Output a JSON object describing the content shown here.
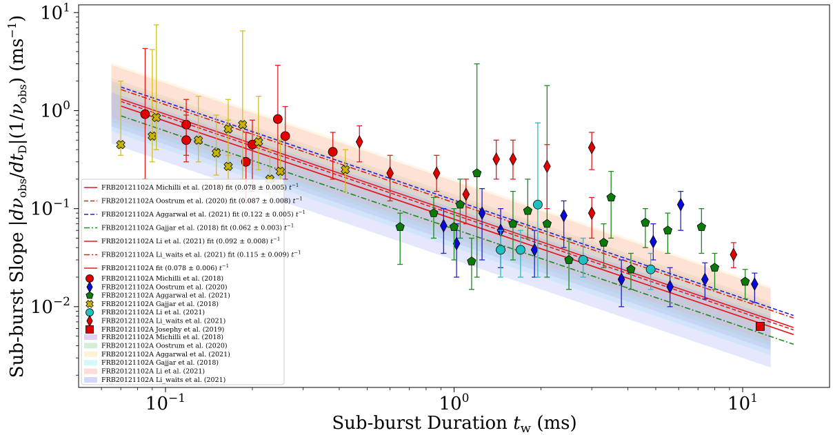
{
  "chart_data": {
    "type": "scatter",
    "xscale": "log",
    "yscale": "log",
    "xlim": [
      0.05,
      20
    ],
    "ylim": [
      0.0015,
      12
    ],
    "xlabel": "Sub-burst Duration t_w (ms)",
    "ylabel": "Sub-burst Slope |dν_obs/dt_D|(1/ν_obs) (ms^-1)",
    "x_ticks": [
      {
        "value": 0.1,
        "base": "10",
        "exp": "−1"
      },
      {
        "value": 1,
        "base": "10",
        "exp": "0"
      },
      {
        "value": 10,
        "base": "10",
        "exp": "1"
      }
    ],
    "y_ticks": [
      {
        "value": 0.01,
        "base": "10",
        "exp": "−2"
      },
      {
        "value": 0.1,
        "base": "10",
        "exp": "−1"
      },
      {
        "value": 1,
        "base": "10",
        "exp": "0"
      },
      {
        "value": 10,
        "base": "10",
        "exp": "1"
      }
    ],
    "grid": false,
    "legend_position": "lower-left",
    "fit_lines": [
      {
        "label": "FRB20121102A Michilli et al. (2018) fit (0.078 ± 0.005) t_w^-1",
        "coef": 0.078,
        "color": "#e31a1c",
        "dash": "solid"
      },
      {
        "label": "FRB20121102A Oostrum et al. (2020) fit (0.087 ± 0.008) t_w^-1",
        "coef": 0.087,
        "color": "#e31a1c",
        "dash": "dashed"
      },
      {
        "label": "FRB20121102A Aggarwal et al. (2021) fit (0.122 ± 0.005) t_w^-1",
        "coef": 0.122,
        "color": "#1f1fd6",
        "dash": "dashed"
      },
      {
        "label": "FRB20121102A Gajjar et al. (2018) fit (0.062 ± 0.003) t_w^-1",
        "coef": 0.062,
        "color": "#1a8a1a",
        "dash": "dashdot"
      },
      {
        "label": "FRB20121102A Li et al. (2021) fit (0.092 ± 0.008) t_w^-1",
        "coef": 0.092,
        "color": "#e31a1c",
        "dash": "solid"
      },
      {
        "label": "FRB20121102A Li_waits et al. (2021) fit (0.115 ± 0.009) t_w^-1",
        "coef": 0.115,
        "color": "#e31a1c",
        "dash": "dashdot"
      },
      {
        "label": "FRB20121102A fit (0.078 ± 0.006) t_w^-1",
        "coef": 0.078,
        "color": "#e31a1c",
        "dash": "solid"
      }
    ],
    "bands": [
      {
        "label": "FRB20121102A Michilli et al. (2018)",
        "color": "#b39ddb",
        "lo": 0.045,
        "hi": 0.13
      },
      {
        "label": "FRB20121102A Oostrum et al. (2020)",
        "color": "#a5d6a7",
        "lo": 0.05,
        "hi": 0.14
      },
      {
        "label": "FRB20121102A Aggarwal et al. (2021)",
        "color": "#ffe0a0",
        "lo": 0.07,
        "hi": 0.2
      },
      {
        "label": "FRB20121102A Gajjar et al. (2018)",
        "color": "#a0f0f0",
        "lo": 0.04,
        "hi": 0.12
      },
      {
        "label": "FRB20121102A Li et al. (2021)",
        "color": "#ffb0b0",
        "lo": 0.055,
        "hi": 0.19
      },
      {
        "label": "FRB20121102A Li_waits et al. (2021)",
        "color": "#a0a8f8",
        "lo": 0.03,
        "hi": 0.1
      }
    ],
    "series": [
      {
        "name": "FRB20121102A Michilli et al. (2018)",
        "marker": "circle",
        "color": "#e00000",
        "errcolor": "#e31a1c",
        "points": [
          {
            "x": 0.085,
            "y": 0.92,
            "ylo": 0.2,
            "yhi": 4.3
          },
          {
            "x": 0.118,
            "y": 0.72,
            "ylo": 0.35,
            "yhi": 1.3
          },
          {
            "x": 0.118,
            "y": 0.5,
            "ylo": 0.3,
            "yhi": 0.9
          },
          {
            "x": 0.19,
            "y": 0.3,
            "ylo": 0.12,
            "yhi": 0.6
          },
          {
            "x": 0.2,
            "y": 0.45,
            "ylo": 0.15,
            "yhi": 0.8
          },
          {
            "x": 0.245,
            "y": 0.82,
            "ylo": 0.25,
            "yhi": 2.9
          },
          {
            "x": 0.26,
            "y": 0.55,
            "ylo": 0.2,
            "yhi": 1.1
          },
          {
            "x": 0.38,
            "y": 0.38,
            "ylo": 0.2,
            "yhi": 0.6
          }
        ]
      },
      {
        "name": "FRB20121102A Oostrum et al. (2020)",
        "marker": "diamond",
        "color": "#0a0ad8",
        "errcolor": "#1f1fd6",
        "points": [
          {
            "x": 0.92,
            "y": 0.067,
            "ylo": 0.035,
            "yhi": 0.1
          },
          {
            "x": 1.02,
            "y": 0.044,
            "ylo": 0.02,
            "yhi": 0.07
          },
          {
            "x": 1.25,
            "y": 0.09,
            "ylo": 0.03,
            "yhi": 0.16
          },
          {
            "x": 1.45,
            "y": 0.06,
            "ylo": 0.025,
            "yhi": 0.1
          },
          {
            "x": 1.9,
            "y": 0.038,
            "ylo": 0.02,
            "yhi": 0.06
          },
          {
            "x": 2.4,
            "y": 0.085,
            "ylo": 0.04,
            "yhi": 0.12
          },
          {
            "x": 3.8,
            "y": 0.019,
            "ylo": 0.01,
            "yhi": 0.03
          },
          {
            "x": 4.9,
            "y": 0.046,
            "ylo": 0.03,
            "yhi": 0.07
          },
          {
            "x": 5.6,
            "y": 0.016,
            "ylo": 0.01,
            "yhi": 0.025
          },
          {
            "x": 6.1,
            "y": 0.11,
            "ylo": 0.06,
            "yhi": 0.15
          },
          {
            "x": 7.4,
            "y": 0.019,
            "ylo": 0.012,
            "yhi": 0.028
          },
          {
            "x": 11,
            "y": 0.017,
            "ylo": 0.011,
            "yhi": 0.022
          }
        ]
      },
      {
        "name": "FRB20121102A Aggarwal et al. (2021)",
        "marker": "pentagon",
        "color": "#0b7a0b",
        "errcolor": "#1a8a1a",
        "points": [
          {
            "x": 0.65,
            "y": 0.065,
            "ylo": 0.027,
            "yhi": 0.09
          },
          {
            "x": 0.85,
            "y": 0.09,
            "ylo": 0.05,
            "yhi": 0.13
          },
          {
            "x": 1.0,
            "y": 0.065,
            "ylo": 0.03,
            "yhi": 0.1
          },
          {
            "x": 1.05,
            "y": 0.11,
            "ylo": 0.05,
            "yhi": 0.2
          },
          {
            "x": 1.15,
            "y": 0.029,
            "ylo": 0.015,
            "yhi": 0.05
          },
          {
            "x": 1.2,
            "y": 0.23,
            "ylo": 0.02,
            "yhi": 3.0
          },
          {
            "x": 1.6,
            "y": 0.07,
            "ylo": 0.03,
            "yhi": 0.15
          },
          {
            "x": 1.8,
            "y": 0.095,
            "ylo": 0.05,
            "yhi": 0.2
          },
          {
            "x": 2.1,
            "y": 0.07,
            "ylo": 0.02,
            "yhi": 1.8
          },
          {
            "x": 2.5,
            "y": 0.03,
            "ylo": 0.015,
            "yhi": 0.05
          },
          {
            "x": 3.3,
            "y": 0.045,
            "ylo": 0.025,
            "yhi": 0.07
          },
          {
            "x": 3.5,
            "y": 0.13,
            "ylo": 0.05,
            "yhi": 0.24
          },
          {
            "x": 4.1,
            "y": 0.024,
            "ylo": 0.015,
            "yhi": 0.035
          },
          {
            "x": 4.6,
            "y": 0.072,
            "ylo": 0.04,
            "yhi": 0.1
          },
          {
            "x": 5.5,
            "y": 0.06,
            "ylo": 0.035,
            "yhi": 0.09
          },
          {
            "x": 7.2,
            "y": 0.065,
            "ylo": 0.035,
            "yhi": 0.1
          },
          {
            "x": 8.0,
            "y": 0.025,
            "ylo": 0.015,
            "yhi": 0.035
          },
          {
            "x": 10.2,
            "y": 0.018,
            "ylo": 0.012,
            "yhi": 0.024
          }
        ]
      },
      {
        "name": "FRB20121102A Gajjar et al. (2018)",
        "marker": "cross",
        "color": "#c8b400",
        "errcolor": "#d4c010",
        "points": [
          {
            "x": 0.07,
            "y": 0.45,
            "ylo": 0.35,
            "yhi": 2.0
          },
          {
            "x": 0.09,
            "y": 0.55,
            "ylo": 0.3,
            "yhi": 4.2
          },
          {
            "x": 0.093,
            "y": 0.85,
            "ylo": 0.4,
            "yhi": 7.5
          },
          {
            "x": 0.13,
            "y": 0.5,
            "ylo": 0.3,
            "yhi": 1.4
          },
          {
            "x": 0.15,
            "y": 0.37,
            "ylo": 0.22,
            "yhi": 0.9
          },
          {
            "x": 0.165,
            "y": 0.27,
            "ylo": 0.15,
            "yhi": 0.8
          },
          {
            "x": 0.165,
            "y": 0.65,
            "ylo": 0.35,
            "yhi": 1.3
          },
          {
            "x": 0.185,
            "y": 0.72,
            "ylo": 0.2,
            "yhi": 6.5
          },
          {
            "x": 0.21,
            "y": 0.48,
            "ylo": 0.25,
            "yhi": 1.4
          },
          {
            "x": 0.23,
            "y": 0.2,
            "ylo": 0.12,
            "yhi": 0.4
          },
          {
            "x": 0.25,
            "y": 0.24,
            "ylo": 0.15,
            "yhi": 0.5
          },
          {
            "x": 0.42,
            "y": 0.25,
            "ylo": 0.15,
            "yhi": 0.4
          }
        ]
      },
      {
        "name": "FRB20121102A Li et al. (2021)",
        "marker": "circle",
        "color": "#20c0c0",
        "errcolor": "#20c0c0",
        "points": [
          {
            "x": 1.45,
            "y": 0.038,
            "ylo": 0.02,
            "yhi": 0.06
          },
          {
            "x": 1.7,
            "y": 0.038,
            "ylo": 0.02,
            "yhi": 0.06
          },
          {
            "x": 1.95,
            "y": 0.11,
            "ylo": 0.02,
            "yhi": 0.75
          },
          {
            "x": 2.8,
            "y": 0.03,
            "ylo": 0.02,
            "yhi": 0.05
          },
          {
            "x": 4.8,
            "y": 0.024,
            "ylo": 0.015,
            "yhi": 0.035
          }
        ]
      },
      {
        "name": "FRB20121102A Li_waits et al. (2021)",
        "marker": "diamond",
        "color": "#e00000",
        "errcolor": "#e31a1c",
        "points": [
          {
            "x": 0.47,
            "y": 0.48,
            "ylo": 0.3,
            "yhi": 0.7
          },
          {
            "x": 0.6,
            "y": 0.23,
            "ylo": 0.12,
            "yhi": 0.35
          },
          {
            "x": 0.87,
            "y": 0.23,
            "ylo": 0.15,
            "yhi": 0.35
          },
          {
            "x": 1.1,
            "y": 0.14,
            "ylo": 0.07,
            "yhi": 0.2
          },
          {
            "x": 1.4,
            "y": 0.32,
            "ylo": 0.2,
            "yhi": 0.5
          },
          {
            "x": 1.6,
            "y": 0.32,
            "ylo": 0.2,
            "yhi": 0.5
          },
          {
            "x": 2.1,
            "y": 0.27,
            "ylo": 0.1,
            "yhi": 0.45
          },
          {
            "x": 3.0,
            "y": 0.42,
            "ylo": 0.25,
            "yhi": 0.6
          },
          {
            "x": 3.0,
            "y": 0.09,
            "ylo": 0.05,
            "yhi": 0.13
          },
          {
            "x": 9.3,
            "y": 0.034,
            "ylo": 0.025,
            "yhi": 0.045
          }
        ]
      },
      {
        "name": "FRB20121102A Josephy et al. (2019)",
        "marker": "square",
        "color": "#e00000",
        "errcolor": "#e31a1c",
        "points": [
          {
            "x": 11.5,
            "y": 0.0063,
            "ylo": 0.0063,
            "yhi": 0.0063
          }
        ]
      }
    ],
    "legend": {
      "fit_entries": [
        "FRB20121102A Michilli et al. (2018) fit (0.078 ± 0.005) t_w^-1",
        "FRB20121102A Oostrum et al. (2020) fit (0.087 ± 0.008) t_w^-1",
        "FRB20121102A Aggarwal et al. (2021) fit (0.122 ± 0.005) t_w^-1",
        "FRB20121102A Gajjar et al. (2018) fit (0.062 ± 0.003) t_w^-1",
        "FRB20121102A Li et al. (2021) fit (0.092 ± 0.008) t_w^-1",
        "FRB20121102A Li_waits et al. (2021) fit (0.115 ± 0.009) t_w^-1",
        "FRB20121102A fit (0.078 ± 0.006) t_w^-1"
      ],
      "marker_entries": [
        "FRB20121102A Michilli et al. (2018)",
        "FRB20121102A Oostrum et al. (2020)",
        "FRB20121102A Aggarwal et al. (2021)",
        "FRB20121102A Gajjar et al. (2018)",
        "FRB20121102A Li et al. (2021)",
        "FRB20121102A Li_waits et al. (2021)",
        "FRB20121102A Josephy et al. (2019)"
      ],
      "band_entries": [
        "FRB20121102A Michilli et al. (2018)",
        "FRB20121102A Oostrum et al. (2020)",
        "FRB20121102A Aggarwal et al. (2021)",
        "FRB20121102A Gajjar et al. (2018)",
        "FRB20121102A Li et al. (2021)",
        "FRB20121102A Li_waits et al. (2021)"
      ]
    }
  }
}
